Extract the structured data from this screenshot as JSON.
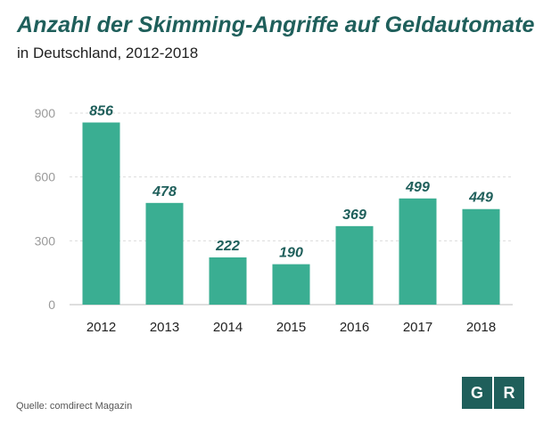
{
  "title": "Anzahl der Skimming-Angriffe auf Geldautomaten",
  "subtitle": "in Deutschland, 2012-2018",
  "source": "Quelle: comdirect Magazin",
  "logo": {
    "left": "G",
    "right": "R"
  },
  "colors": {
    "bar": "#3aae92",
    "label": "#1f5f5b",
    "grid": "#dcdcdc"
  },
  "chart_data": {
    "type": "bar",
    "title": "Anzahl der Skimming-Angriffe auf Geldautomaten",
    "subtitle": "in Deutschland, 2012-2018",
    "xlabel": "",
    "ylabel": "",
    "ylim": [
      0,
      900
    ],
    "yticks": [
      0,
      300,
      600,
      900
    ],
    "grid": true,
    "categories": [
      "2012",
      "2013",
      "2014",
      "2015",
      "2016",
      "2017",
      "2018"
    ],
    "values": [
      856,
      478,
      222,
      190,
      369,
      499,
      449
    ]
  }
}
